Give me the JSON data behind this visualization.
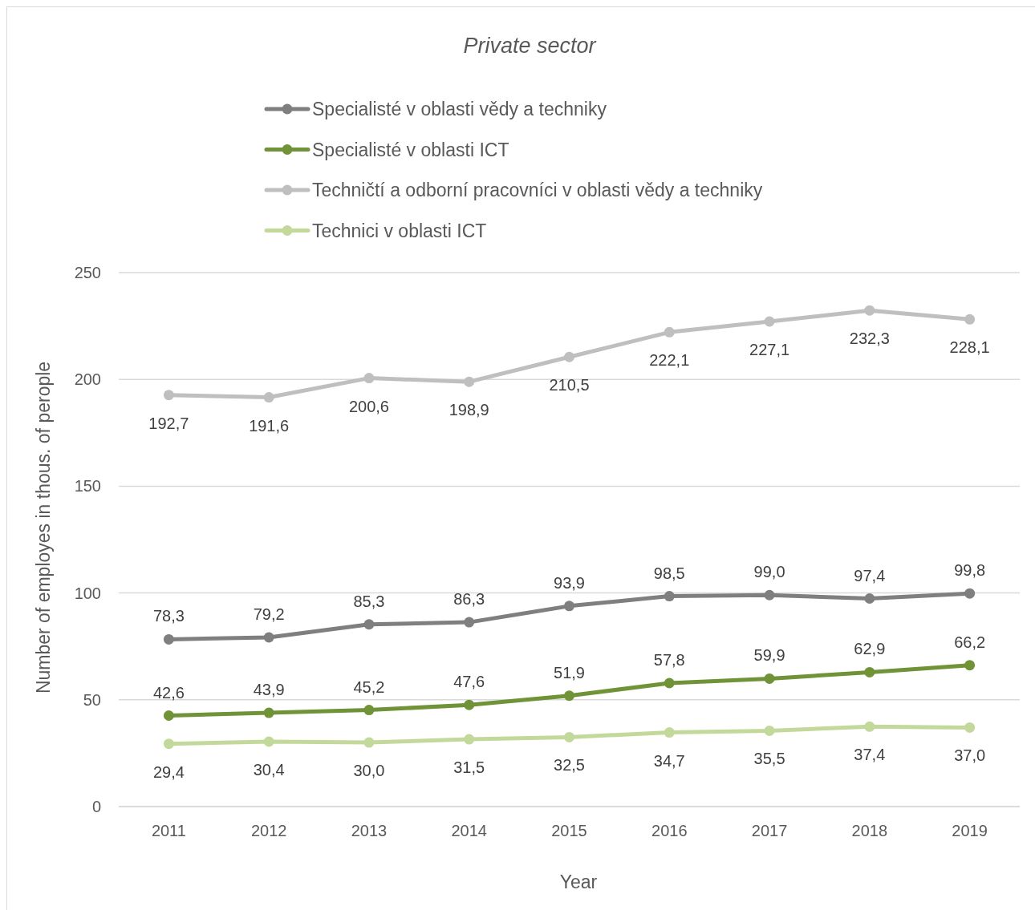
{
  "chart_data": {
    "type": "line",
    "title": "Private sector",
    "xlabel": "Year",
    "ylabel": "Number of employes in thous. of perople",
    "categories": [
      "2011",
      "2012",
      "2013",
      "2014",
      "2015",
      "2016",
      "2017",
      "2018",
      "2019"
    ],
    "ylim": [
      0,
      250
    ],
    "yticks": [
      0,
      50,
      100,
      150,
      200,
      250
    ],
    "grid": "y",
    "legend": "top",
    "marker": "circle",
    "line_style": "solid",
    "series": [
      {
        "name": "Specialisté v oblasti vědy a techniky",
        "color": "#7f7f7f",
        "values": [
          78.3,
          79.2,
          85.3,
          86.3,
          93.9,
          98.5,
          99.0,
          97.4,
          99.8
        ],
        "value_labels": [
          "78,3",
          "79,2",
          "85,3",
          "86,3",
          "93,9",
          "98,5",
          "99,0",
          "97,4",
          "99,8"
        ]
      },
      {
        "name": "Specialisté v oblasti ICT",
        "color": "#6f9336",
        "values": [
          42.6,
          43.9,
          45.2,
          47.6,
          51.9,
          57.8,
          59.9,
          62.9,
          66.2
        ],
        "value_labels": [
          "42,6",
          "43,9",
          "45,2",
          "47,6",
          "51,9",
          "57,8",
          "59,9",
          "62,9",
          "66,2"
        ]
      },
      {
        "name": "Techničtí a odborní pracovníci v oblasti vědy a techniky",
        "color": "#bfbfbf",
        "values": [
          192.7,
          191.6,
          200.6,
          198.9,
          210.5,
          222.1,
          227.1,
          232.3,
          228.1
        ],
        "value_labels": [
          "192,7",
          "191,6",
          "200,6",
          "198,9",
          "210,5",
          "222,1",
          "227,1",
          "232,3",
          "228,1"
        ]
      },
      {
        "name": "Technici v oblasti ICT",
        "color": "#c3d99b",
        "values": [
          29.4,
          30.4,
          30.0,
          31.5,
          32.5,
          34.7,
          35.5,
          37.4,
          37.0
        ],
        "value_labels": [
          "29,4",
          "30,4",
          "30,0",
          "31,5",
          "32,5",
          "34,7",
          "35,5",
          "37,4",
          "37,0"
        ]
      }
    ]
  }
}
